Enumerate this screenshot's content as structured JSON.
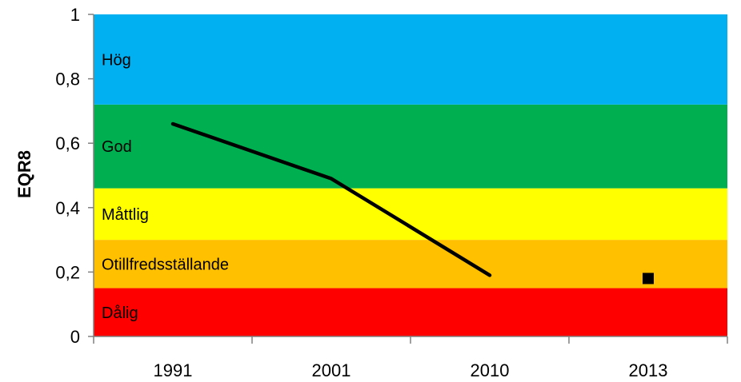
{
  "chart_data": {
    "type": "line",
    "title": "",
    "xlabel": "",
    "ylabel": "EQR8",
    "ylim": [
      0,
      1
    ],
    "y_ticks": [
      "0",
      "0,2",
      "0,4",
      "0,6",
      "0,8",
      "1"
    ],
    "categories": [
      "1991",
      "2001",
      "2010",
      "2013"
    ],
    "series": [
      {
        "name": "",
        "style": "line",
        "color": "#000000",
        "points": [
          {
            "category": "1991",
            "value": 0.66
          },
          {
            "category": "2001",
            "value": 0.49
          },
          {
            "category": "2010",
            "value": 0.19
          }
        ]
      },
      {
        "name": "",
        "style": "marker-square",
        "color": "#000000",
        "points": [
          {
            "category": "2013",
            "value": 0.18
          }
        ]
      }
    ],
    "bands": [
      {
        "label": "Dålig",
        "from": 0.0,
        "to": 0.15,
        "color": "#ff0000"
      },
      {
        "label": "Otillfredsställande",
        "from": 0.15,
        "to": 0.3,
        "color": "#ffc000"
      },
      {
        "label": "Måttlig",
        "from": 0.3,
        "to": 0.46,
        "color": "#ffff00"
      },
      {
        "label": "God",
        "from": 0.46,
        "to": 0.72,
        "color": "#00b050"
      },
      {
        "label": "Hög",
        "from": 0.72,
        "to": 1.0,
        "color": "#00b0f0"
      }
    ],
    "grid": false,
    "legend": "none"
  }
}
